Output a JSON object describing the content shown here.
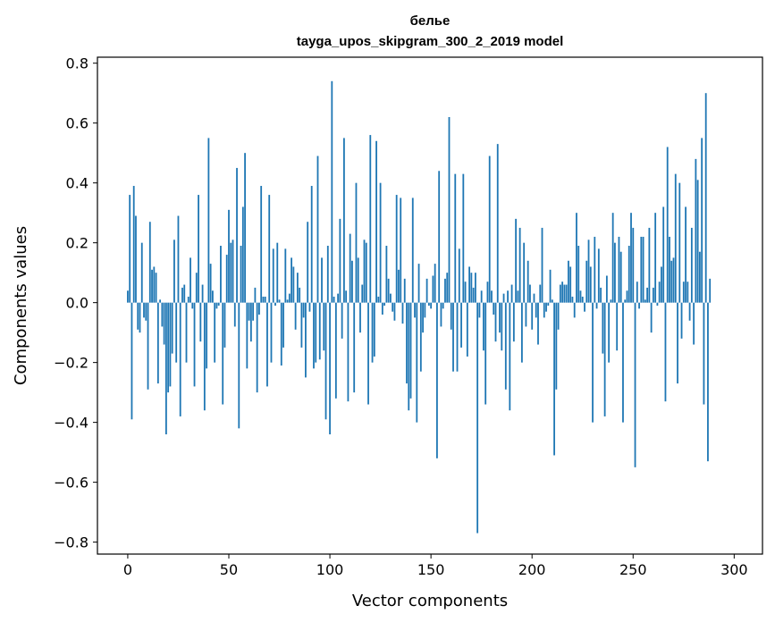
{
  "chart_data": {
    "type": "bar",
    "title": "белье",
    "subtitle": "tayga_upos_skipgram_300_2_2019 model",
    "xlabel": "Vector components",
    "ylabel": "Components values",
    "xlim": [
      -15,
      314
    ],
    "ylim": [
      -0.84,
      0.82
    ],
    "xticks": [
      0,
      50,
      100,
      150,
      200,
      250,
      300
    ],
    "yticks": [
      -0.8,
      -0.6,
      -0.4,
      -0.2,
      0.0,
      0.2,
      0.4,
      0.6,
      0.8
    ],
    "xtick_labels": [
      "0",
      "50",
      "100",
      "150",
      "200",
      "250",
      "300"
    ],
    "ytick_labels": [
      "−0.8",
      "−0.6",
      "−0.4",
      "−0.2",
      "0.0",
      "0.2",
      "0.4",
      "0.6",
      "0.8"
    ],
    "grid": false,
    "bar_color": "#1f77b4",
    "values": [
      0.04,
      0.36,
      -0.39,
      0.39,
      0.29,
      -0.09,
      -0.1,
      0.2,
      -0.05,
      -0.06,
      -0.29,
      0.27,
      0.11,
      0.12,
      0.1,
      -0.27,
      0.01,
      -0.08,
      -0.14,
      -0.44,
      -0.3,
      -0.28,
      -0.17,
      0.21,
      -0.2,
      0.29,
      -0.38,
      0.05,
      0.06,
      -0.2,
      0.02,
      0.15,
      -0.02,
      -0.28,
      0.1,
      0.36,
      -0.13,
      0.06,
      -0.36,
      -0.22,
      0.55,
      0.13,
      0.04,
      -0.2,
      -0.02,
      -0.01,
      0.19,
      -0.34,
      -0.15,
      0.16,
      0.31,
      0.2,
      0.21,
      -0.08,
      0.45,
      -0.42,
      0.19,
      0.32,
      0.5,
      -0.22,
      -0.06,
      -0.13,
      -0.06,
      0.05,
      -0.3,
      -0.04,
      0.39,
      0.02,
      0.02,
      -0.28,
      0.36,
      -0.2,
      0.18,
      -0.01,
      0.2,
      0.01,
      -0.21,
      -0.15,
      0.18,
      0.01,
      0.03,
      0.15,
      0.12,
      -0.09,
      0.1,
      0.05,
      -0.15,
      -0.05,
      -0.25,
      0.27,
      -0.03,
      0.39,
      -0.22,
      -0.2,
      0.49,
      -0.19,
      0.15,
      -0.16,
      -0.39,
      0.19,
      -0.44,
      0.74,
      0.02,
      -0.32,
      0.03,
      0.28,
      -0.12,
      0.55,
      0.04,
      -0.33,
      0.23,
      0.14,
      -0.3,
      0.4,
      0.15,
      -0.1,
      0.06,
      0.21,
      0.2,
      -0.34,
      0.56,
      -0.2,
      -0.18,
      0.54,
      0.02,
      0.4,
      -0.04,
      -0.01,
      0.19,
      0.08,
      0.03,
      -0.03,
      -0.06,
      0.36,
      0.11,
      0.35,
      -0.07,
      0.08,
      -0.27,
      -0.36,
      -0.32,
      0.35,
      -0.05,
      -0.4,
      0.13,
      -0.23,
      -0.1,
      -0.05,
      0.08,
      -0.01,
      -0.02,
      0.09,
      0.13,
      -0.52,
      0.44,
      -0.08,
      -0.02,
      0.08,
      0.1,
      0.62,
      -0.09,
      -0.23,
      0.43,
      -0.23,
      0.18,
      -0.15,
      0.43,
      0.07,
      -0.18,
      0.12,
      0.1,
      0.05,
      0.1,
      -0.77,
      -0.05,
      0.04,
      -0.16,
      -0.34,
      0.07,
      0.49,
      0.04,
      -0.04,
      -0.13,
      0.53,
      -0.1,
      -0.16,
      0.03,
      -0.29,
      0.04,
      -0.36,
      0.06,
      -0.13,
      0.28,
      0.04,
      0.25,
      -0.2,
      0.2,
      -0.08,
      0.14,
      0.06,
      -0.09,
      0.03,
      -0.05,
      -0.14,
      0.06,
      0.25,
      -0.05,
      -0.03,
      -0.01,
      0.11,
      0.01,
      -0.51,
      -0.29,
      -0.09,
      0.06,
      0.07,
      0.06,
      0.06,
      0.14,
      0.12,
      0.02,
      -0.05,
      0.3,
      0.19,
      0.04,
      0.02,
      -0.03,
      0.14,
      0.21,
      0.12,
      -0.4,
      0.22,
      -0.02,
      0.18,
      0.05,
      -0.17,
      -0.38,
      0.09,
      -0.2,
      0.01,
      0.3,
      0.2,
      -0.16,
      0.22,
      0.17,
      -0.4,
      0.01,
      0.04,
      0.19,
      0.3,
      0.25,
      -0.55,
      0.07,
      -0.02,
      0.22,
      0.22,
      0.01,
      0.05,
      0.25,
      -0.1,
      0.05,
      0.3,
      -0.01,
      0.07,
      0.12,
      0.32,
      -0.33,
      0.52,
      0.22,
      0.14,
      0.15,
      0.43,
      -0.27,
      0.4,
      -0.12,
      0.07,
      0.32,
      0.07,
      -0.06,
      0.25,
      -0.14,
      0.48,
      0.41,
      0.17,
      0.55,
      -0.34,
      0.7,
      -0.53,
      0.08
    ]
  }
}
